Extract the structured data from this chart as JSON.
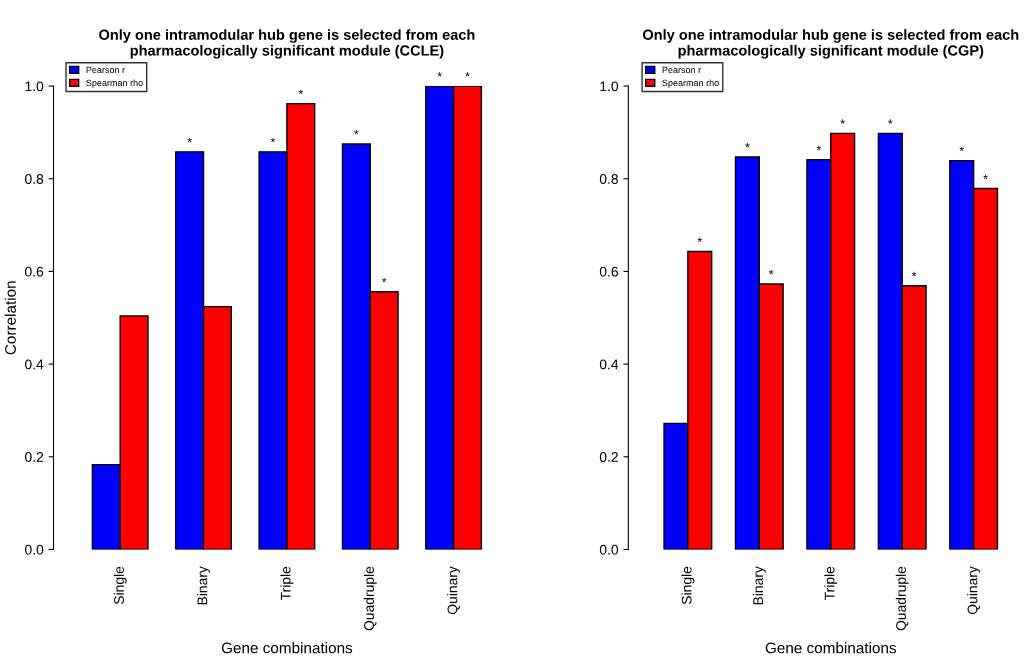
{
  "chart_data": [
    {
      "type": "bar",
      "title": "Only one intramodular hub gene is selected from each\npharmacologically significant module (CCLE)",
      "xlabel": "Gene combinations",
      "ylabel": "Correlation",
      "categories": [
        "Single",
        "Binary",
        "Triple",
        "Quadruple",
        "Quinary"
      ],
      "series": [
        {
          "name": "Pearson r",
          "color": "#0000ff",
          "values": [
            0.183,
            0.858,
            0.858,
            0.875,
            1.0
          ],
          "value_labels": [
            null,
            "*",
            "*",
            "*",
            "*"
          ]
        },
        {
          "name": "Spearman rho",
          "color": "#ff0000",
          "values": [
            0.504,
            0.524,
            0.962,
            0.556,
            1.0
          ],
          "value_labels": [
            null,
            null,
            "*",
            "*",
            "*"
          ]
        }
      ],
      "ylim": [
        0,
        1.0
      ],
      "yticks": [
        {
          "value": 0,
          "label": "0.0"
        },
        {
          "value": 0.2,
          "label": "0.2"
        },
        {
          "value": 0.4,
          "label": "0.4"
        },
        {
          "value": 0.6,
          "label": "0.6"
        },
        {
          "value": 0.8,
          "label": "0.8"
        },
        {
          "value": 1.0,
          "label": "1.0"
        }
      ],
      "legend": "top left",
      "grid": false
    },
    {
      "type": "bar",
      "title": "Only one intramodular hub gene is selected from each\npharmacologically significant module (CGP)",
      "xlabel": "Gene combinations",
      "categories": [
        "Single",
        "Binary",
        "Triple",
        "Quadruple",
        "Quinary"
      ],
      "series": [
        {
          "name": "Pearson r",
          "color": "#0000ff",
          "values": [
            0.272,
            0.847,
            0.841,
            0.898,
            0.839
          ],
          "value_labels": [
            null,
            "*",
            "*",
            "*",
            "*"
          ]
        },
        {
          "name": "Spearman rho",
          "color": "#ff0000",
          "values": [
            0.643,
            0.573,
            0.898,
            0.569,
            0.779
          ],
          "value_labels": [
            "*",
            "*",
            "*",
            "*",
            "*"
          ]
        }
      ],
      "ylim": [
        0,
        1.0
      ],
      "yticks": [
        {
          "value": 0,
          "label": "0.0"
        },
        {
          "value": 0.2,
          "label": "0.2"
        },
        {
          "value": 0.4,
          "label": "0.4"
        },
        {
          "value": 0.6,
          "label": "0.6"
        },
        {
          "value": 0.8,
          "label": "0.8"
        },
        {
          "value": 1.0,
          "label": "1.0"
        }
      ],
      "legend": "top left",
      "grid": false
    }
  ]
}
